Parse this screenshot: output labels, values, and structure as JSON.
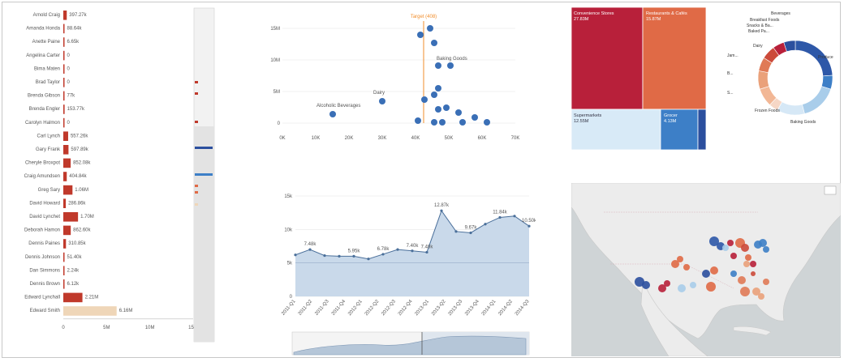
{
  "colors": {
    "bar_red": "#c0392b",
    "bar_highlight": "#efd6b8",
    "scatter_blue": "#3a6fb6",
    "target_orange": "#f28e2b",
    "area_fill": "#c9d9ea",
    "area_line": "#4a6f9a",
    "treemap_1": "#b8203a",
    "treemap_2": "#e06a46",
    "treemap_3": "#d8eaf7",
    "treemap_4": "#3d7fc7",
    "treemap_5": "#2b4f9e",
    "map_water": "#cfd4d6",
    "map_land": "#ececec"
  },
  "bar_chart": {
    "names": [
      "Arnold Craig",
      "Amanda Honda",
      "Anette Paine",
      "Angelina Carter",
      "Bima Maten",
      "Brad Taylor",
      "Brenda Gibson",
      "Brenda Engler",
      "Carolyn Halmon",
      "Carl Lynch",
      "Gary Frank",
      "Cheryle Broxpot",
      "Craig Amundsen",
      "Greg Sary",
      "David Howard",
      "David Lynchet",
      "Deborah Hamon",
      "Dennis Paines",
      "Dennis Johnson",
      "Dan Simmons",
      "Dennis Brown",
      "Edward Lynchall",
      "Edward Smith"
    ],
    "value_labels": [
      "397.27k",
      "88.64k",
      "6.65k",
      "0",
      "0",
      "0",
      "77k",
      "153.77k",
      "0",
      "557.26k",
      "597.89k",
      "852.08k",
      "404.84k",
      "1.06M",
      "286.86k",
      "1.70M",
      "862.60k",
      "310.85k",
      "51.40k",
      "2.24k",
      "6.12k",
      "2.21M",
      "6.16M"
    ],
    "values": [
      0.4,
      0.09,
      0.007,
      0,
      0,
      0,
      0.08,
      0.15,
      0,
      0.56,
      0.6,
      0.85,
      0.4,
      1.06,
      0.29,
      1.7,
      0.86,
      0.31,
      0.05,
      0.002,
      0.006,
      2.21,
      6.16
    ],
    "x_ticks": [
      "0",
      "5M",
      "10M",
      "15M"
    ]
  },
  "scatter": {
    "target_label": "Target (408)",
    "x_ticks": [
      "0K",
      "10K",
      "20K",
      "30K",
      "40K",
      "50K",
      "60K",
      "70K"
    ],
    "y_ticks": [
      "0",
      "5M",
      "10M",
      "15M"
    ],
    "annotations": [
      "Alcoholic Beverages",
      "Dairy",
      "Baking Goods"
    ]
  },
  "area_chart": {
    "y_ticks": [
      "0",
      "5k",
      "10k",
      "15k"
    ],
    "x_ticks": [
      "2011-Q1",
      "2011-Q2",
      "2011-Q3",
      "2011-Q4",
      "2012-Q1",
      "2012-Q2",
      "2012-Q3",
      "2012-Q4",
      "2013-Q1",
      "2013-Q2",
      "2013-Q3",
      "2013-Q4",
      "2014-Q1",
      "2014-Q2",
      "2014-Q3"
    ],
    "value_labels": [
      "7.48k",
      "5.95k",
      "6.78k",
      "7.40k",
      "7.48k",
      "12.87k",
      "9.67k",
      "11.84k",
      "10.50k"
    ]
  },
  "treemap": {
    "cells": [
      {
        "name": "Convenience Stores",
        "value": "27.83M"
      },
      {
        "name": "Restaurants & Cafés",
        "value": "15.87M"
      },
      {
        "name": "Supermarkets",
        "value": "12.55M"
      },
      {
        "name": "Grocer",
        "value": "4.13M"
      }
    ]
  },
  "donut": {
    "labels": [
      "Beverages",
      "Breakfast Foods",
      "Snacks & Ba...",
      "Baked Pa...",
      "Dairy",
      "Jam...",
      "B...",
      "S...",
      "Frozen Foods",
      "Baking Goods",
      "Produce"
    ]
  }
}
